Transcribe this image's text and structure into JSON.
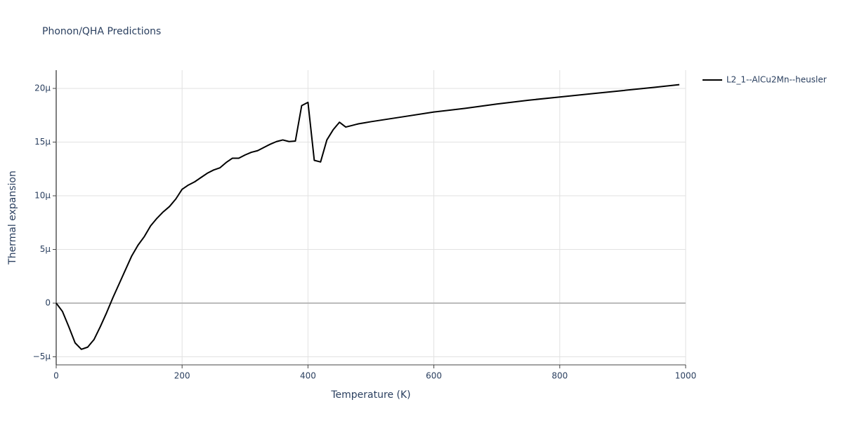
{
  "chart_data": {
    "type": "line",
    "title": "Phonon/QHA Predictions",
    "x_label": "Temperature (K)",
    "y_label": "Thermal expansion",
    "x": [
      0,
      10,
      20,
      30,
      40,
      50,
      60,
      70,
      80,
      90,
      100,
      110,
      120,
      130,
      140,
      150,
      160,
      170,
      180,
      190,
      200,
      210,
      220,
      230,
      240,
      250,
      260,
      270,
      280,
      290,
      300,
      310,
      320,
      330,
      340,
      350,
      360,
      370,
      380,
      390,
      400,
      410,
      420,
      430,
      440,
      450,
      460,
      470,
      480,
      490,
      500,
      550,
      600,
      650,
      700,
      750,
      800,
      850,
      900,
      950,
      990
    ],
    "series": [
      {
        "name": "L2_1--AlCu2Mn--heusler",
        "color": "#000000",
        "values": [
          0,
          -7.8e-07,
          -2.2e-06,
          -3.7e-06,
          -4.3e-06,
          -4.1e-06,
          -3.4e-06,
          -2.2e-06,
          -9e-07,
          5e-07,
          1.8e-06,
          3.1e-06,
          4.4e-06,
          5.4e-06,
          6.2e-06,
          7.2e-06,
          7.9e-06,
          8.5e-06,
          9e-06,
          9.7e-06,
          1.06e-05,
          1.1e-05,
          1.13e-05,
          1.17e-05,
          1.21e-05,
          1.24e-05,
          1.26e-05,
          1.31e-05,
          1.35e-05,
          1.35e-05,
          1.38e-05,
          1.405e-05,
          1.42e-05,
          1.45e-05,
          1.48e-05,
          1.505e-05,
          1.52e-05,
          1.505e-05,
          1.51e-05,
          1.84e-05,
          1.87e-05,
          1.33e-05,
          1.315e-05,
          1.52e-05,
          1.615e-05,
          1.685e-05,
          1.64e-05,
          1.655e-05,
          1.67e-05,
          1.68e-05,
          1.69e-05,
          1.735e-05,
          1.78e-05,
          1.815e-05,
          1.855e-05,
          1.89e-05,
          1.92e-05,
          1.95e-05,
          1.98e-05,
          2.01e-05,
          2.035e-05
        ]
      }
    ],
    "xlim": [
      0,
      1000
    ],
    "xticks": [
      0,
      200,
      400,
      600,
      800,
      1000
    ],
    "ylim": [
      -5.75e-06,
      2.17e-05
    ],
    "yticks": [
      {
        "value": -5e-06,
        "label": "−5μ"
      },
      0,
      {
        "value": 5e-06,
        "label": "5μ"
      },
      {
        "value": 1e-05,
        "label": "10μ"
      },
      {
        "value": 1.5e-05,
        "label": "15μ"
      },
      {
        "value": 2e-05,
        "label": "20μ"
      }
    ],
    "grid": true,
    "legend": "right"
  }
}
